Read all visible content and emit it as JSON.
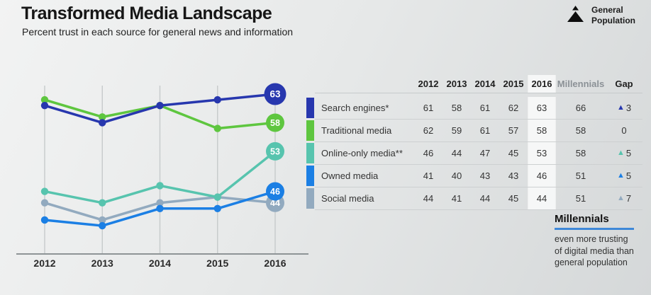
{
  "header": {
    "title": "Transformed Media Landscape",
    "subtitle": "Percent trust in each source for general news and information"
  },
  "legend": {
    "line1": "General",
    "line2": "Population"
  },
  "chart_data": {
    "type": "line",
    "x": [
      "2012",
      "2013",
      "2014",
      "2015",
      "2016"
    ],
    "ylim": [
      38,
      66
    ],
    "grid": "vertical-per-year",
    "legend_position": "table-right",
    "end_point_value_badges": [
      63,
      58,
      53,
      46,
      44
    ],
    "series": [
      {
        "name": "Search engines*",
        "values": [
          61,
          58,
          61,
          62,
          63
        ],
        "millennials": 66,
        "gap": 3,
        "color": "#2737ae"
      },
      {
        "name": "Traditional media",
        "values": [
          62,
          59,
          61,
          57,
          58
        ],
        "millennials": 58,
        "gap": 0,
        "color": "#5ec63f"
      },
      {
        "name": "Online-only media**",
        "values": [
          46,
          44,
          47,
          45,
          53
        ],
        "millennials": 58,
        "gap": 5,
        "color": "#57c4ae"
      },
      {
        "name": "Owned media",
        "values": [
          41,
          40,
          43,
          43,
          46
        ],
        "millennials": 51,
        "gap": 5,
        "color": "#1b7fe4"
      },
      {
        "name": "Social media",
        "values": [
          44,
          41,
          44,
          45,
          44
        ],
        "millennials": 51,
        "gap": 7,
        "color": "#92aabf"
      }
    ]
  },
  "table": {
    "millennials_header": "Millennials",
    "gap_header": "Gap",
    "highlight_year": "2016",
    "gap_up_symbol": "▲"
  },
  "note": {
    "title": "Millennials",
    "lines": [
      "even more trusting",
      "of digital media than",
      "general population"
    ]
  }
}
